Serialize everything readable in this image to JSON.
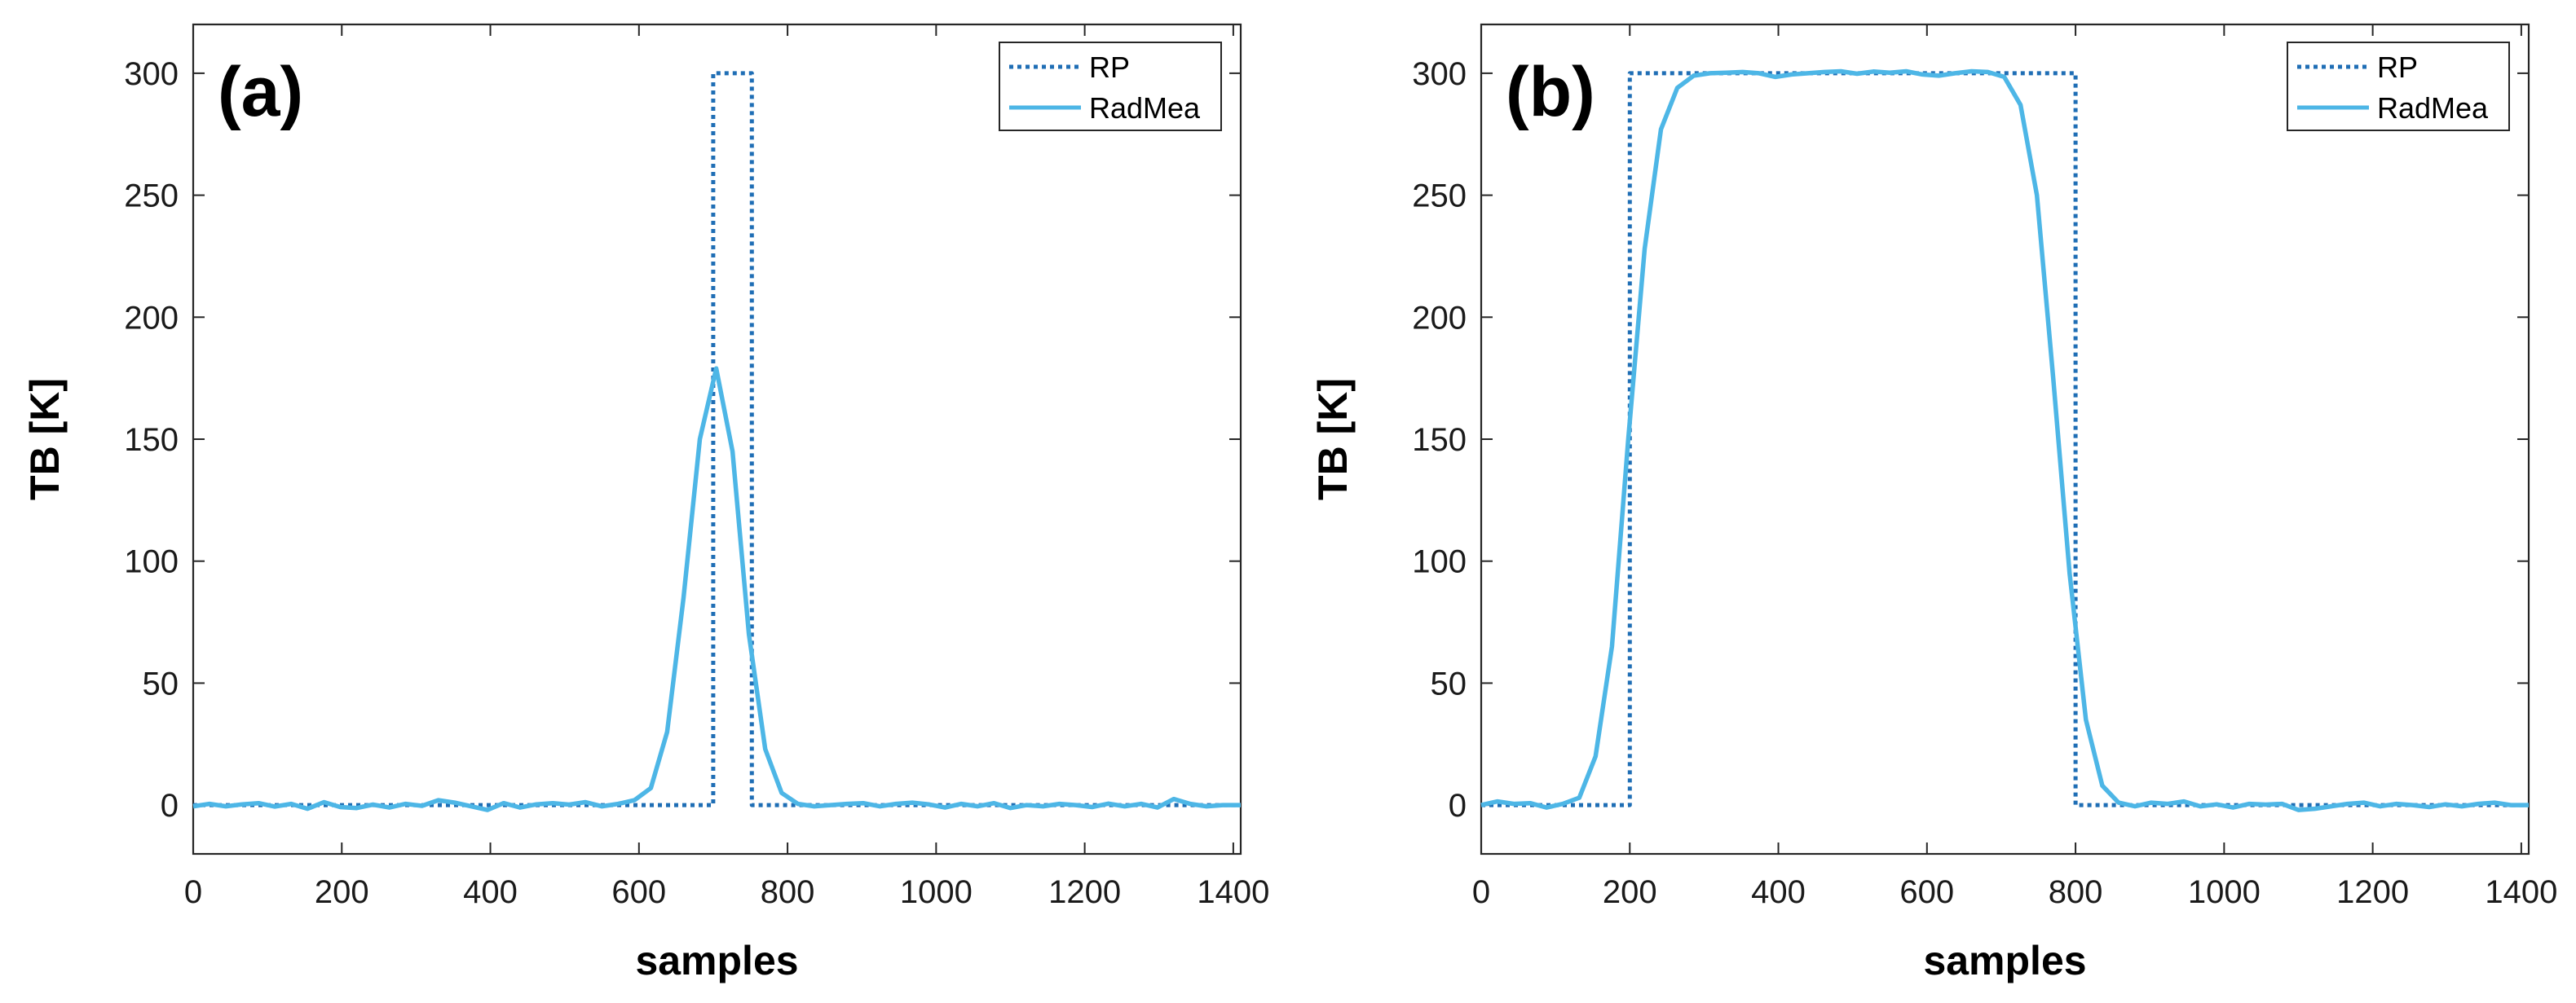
{
  "chart_data": [
    {
      "type": "line",
      "panel_label": "(a)",
      "xlabel": "samples",
      "ylabel": "TB [K]",
      "xlim": [
        0,
        1410
      ],
      "ylim": [
        -20,
        320
      ],
      "xticks": [
        0,
        200,
        400,
        600,
        800,
        1000,
        1200,
        1400
      ],
      "yticks": [
        0,
        50,
        100,
        150,
        200,
        250,
        300
      ],
      "legend_position": "top-right",
      "colors": {
        "rp": "#1f6eb5",
        "radmea": "#4db6e6"
      },
      "series": [
        {
          "name": "RP",
          "style": "dotted",
          "x": [
            0,
            700,
            700,
            752,
            752,
            1410
          ],
          "y": [
            0,
            0,
            300,
            300,
            0,
            0
          ]
        },
        {
          "name": "RadMea",
          "style": "solid",
          "x": [
            0,
            22,
            44,
            66,
            88,
            110,
            132,
            154,
            176,
            198,
            220,
            242,
            264,
            286,
            308,
            330,
            352,
            374,
            396,
            418,
            440,
            462,
            484,
            506,
            528,
            550,
            572,
            594,
            616,
            638,
            660,
            682,
            704,
            726,
            748,
            770,
            792,
            814,
            836,
            858,
            880,
            902,
            924,
            946,
            968,
            990,
            1012,
            1034,
            1056,
            1078,
            1100,
            1122,
            1144,
            1166,
            1188,
            1210,
            1232,
            1254,
            1276,
            1298,
            1320,
            1342,
            1364,
            1386,
            1410
          ],
          "y": [
            -0.5,
            0.5,
            -0.5,
            0.3,
            0.8,
            -0.6,
            0.5,
            -1.5,
            1.2,
            -0.8,
            -1.2,
            0.2,
            -1.0,
            0.5,
            -0.3,
            2.0,
            1.0,
            -0.5,
            -2.0,
            0.8,
            -1.0,
            0.3,
            0.8,
            0.2,
            1.2,
            -0.5,
            0.5,
            2.0,
            7.0,
            30.0,
            85.0,
            150.0,
            179.0,
            145.0,
            70.0,
            23.0,
            5.0,
            0.5,
            -0.5,
            0.0,
            0.5,
            0.8,
            -0.5,
            0.5,
            1.0,
            0.3,
            -1.0,
            0.5,
            -0.5,
            0.8,
            -1.2,
            0.0,
            -0.5,
            0.5,
            0.0,
            -0.8,
            0.6,
            -0.5,
            0.5,
            -1.0,
            2.5,
            0.5,
            -0.5,
            0.0,
            0.0
          ]
        }
      ]
    },
    {
      "type": "line",
      "panel_label": "(b)",
      "xlabel": "samples",
      "ylabel": "TB [K]",
      "xlim": [
        0,
        1410
      ],
      "ylim": [
        -20,
        320
      ],
      "xticks": [
        0,
        200,
        400,
        600,
        800,
        1000,
        1200,
        1400
      ],
      "yticks": [
        0,
        50,
        100,
        150,
        200,
        250,
        300
      ],
      "legend_position": "top-right",
      "colors": {
        "rp": "#1f6eb5",
        "radmea": "#4db6e6"
      },
      "series": [
        {
          "name": "RP",
          "style": "dotted",
          "x": [
            0,
            200,
            200,
            800,
            800,
            1410
          ],
          "y": [
            0,
            0,
            300,
            300,
            0,
            0
          ]
        },
        {
          "name": "RadMea",
          "style": "solid",
          "x": [
            0,
            22,
            44,
            66,
            88,
            110,
            132,
            154,
            176,
            198,
            220,
            242,
            264,
            286,
            308,
            330,
            352,
            374,
            396,
            418,
            440,
            462,
            484,
            506,
            528,
            550,
            572,
            594,
            616,
            638,
            660,
            682,
            704,
            726,
            748,
            770,
            792,
            814,
            836,
            858,
            880,
            902,
            924,
            946,
            968,
            990,
            1012,
            1034,
            1056,
            1078,
            1100,
            1122,
            1144,
            1166,
            1188,
            1210,
            1232,
            1254,
            1276,
            1298,
            1320,
            1342,
            1364,
            1386,
            1410
          ],
          "y": [
            0.0,
            1.5,
            0.5,
            0.8,
            -1.0,
            0.5,
            3.0,
            20.0,
            65.0,
            150.0,
            228.0,
            277.0,
            294.0,
            299.0,
            300.0,
            300.2,
            300.5,
            300.0,
            298.5,
            299.5,
            300.0,
            300.5,
            300.8,
            299.8,
            300.7,
            300.2,
            300.8,
            299.5,
            299.0,
            300.0,
            300.8,
            300.5,
            298.5,
            287.0,
            250.0,
            175.0,
            95.0,
            35.0,
            8.0,
            1.0,
            -0.5,
            1.0,
            0.5,
            1.5,
            -0.5,
            0.3,
            -1.0,
            0.5,
            0.2,
            0.5,
            -2.0,
            -1.5,
            -0.5,
            0.5,
            1.0,
            -0.5,
            0.5,
            0.0,
            -0.8,
            0.3,
            -0.5,
            0.5,
            1.0,
            0.0,
            0.0
          ]
        }
      ]
    }
  ]
}
